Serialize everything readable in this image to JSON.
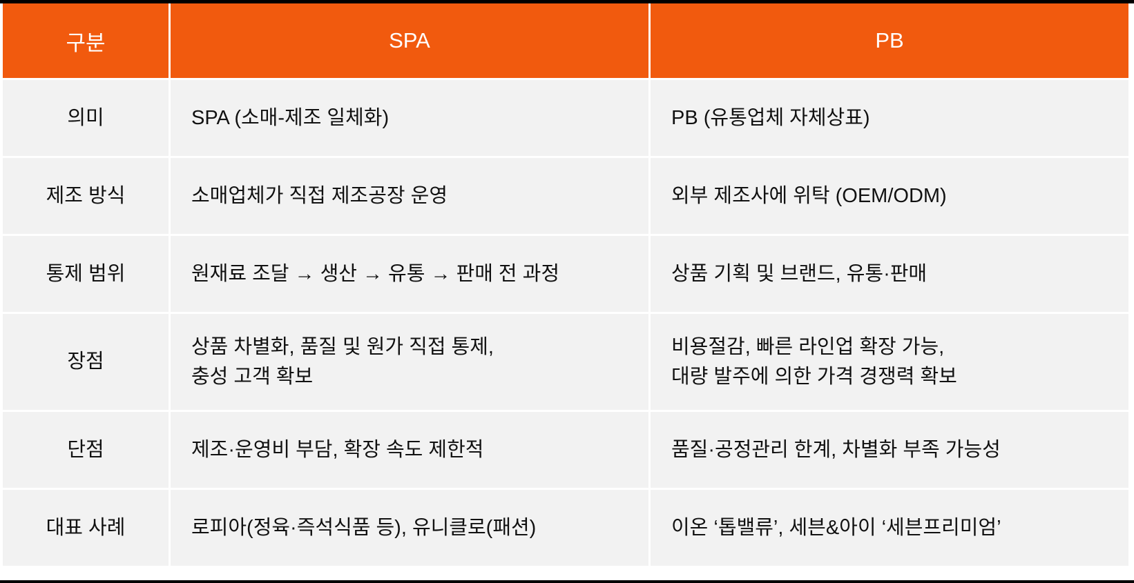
{
  "table": {
    "headers": [
      "구분",
      "SPA",
      "PB"
    ],
    "header_color": "#F15A0E",
    "rows": [
      {
        "label": "의미",
        "spa": [
          "SPA (소매-제조 일체화)"
        ],
        "pb": [
          "PB (유통업체 자체상표)"
        ]
      },
      {
        "label": "제조 방식",
        "spa": [
          "소매업체가 직접 제조공장 운영"
        ],
        "pb": [
          "외부 제조사에 위탁 (OEM/ODM)"
        ]
      },
      {
        "label": "통제 범위",
        "spa": [
          "원재료 조달 → 생산 → 유통 → 판매 전 과정"
        ],
        "pb": [
          "상품 기획 및 브랜드, 유통·판매"
        ]
      },
      {
        "label": "장점",
        "spa": [
          "상품 차별화, 품질 및 원가 직접 통제,",
          "충성 고객 확보"
        ],
        "pb": [
          "비용절감, 빠른 라인업 확장 가능,",
          "대량 발주에 의한 가격 경쟁력 확보"
        ]
      },
      {
        "label": "단점",
        "spa": [
          "제조·운영비 부담, 확장 속도 제한적"
        ],
        "pb": [
          "품질·공정관리 한계, 차별화 부족 가능성"
        ]
      },
      {
        "label": "대표 사례",
        "spa": [
          "로피아(정육·즉석식품 등), 유니클로(패션)"
        ],
        "pb": [
          "이온 ‘톱밸류’, 세븐&아이 ‘세븐프리미엄’"
        ]
      }
    ]
  }
}
